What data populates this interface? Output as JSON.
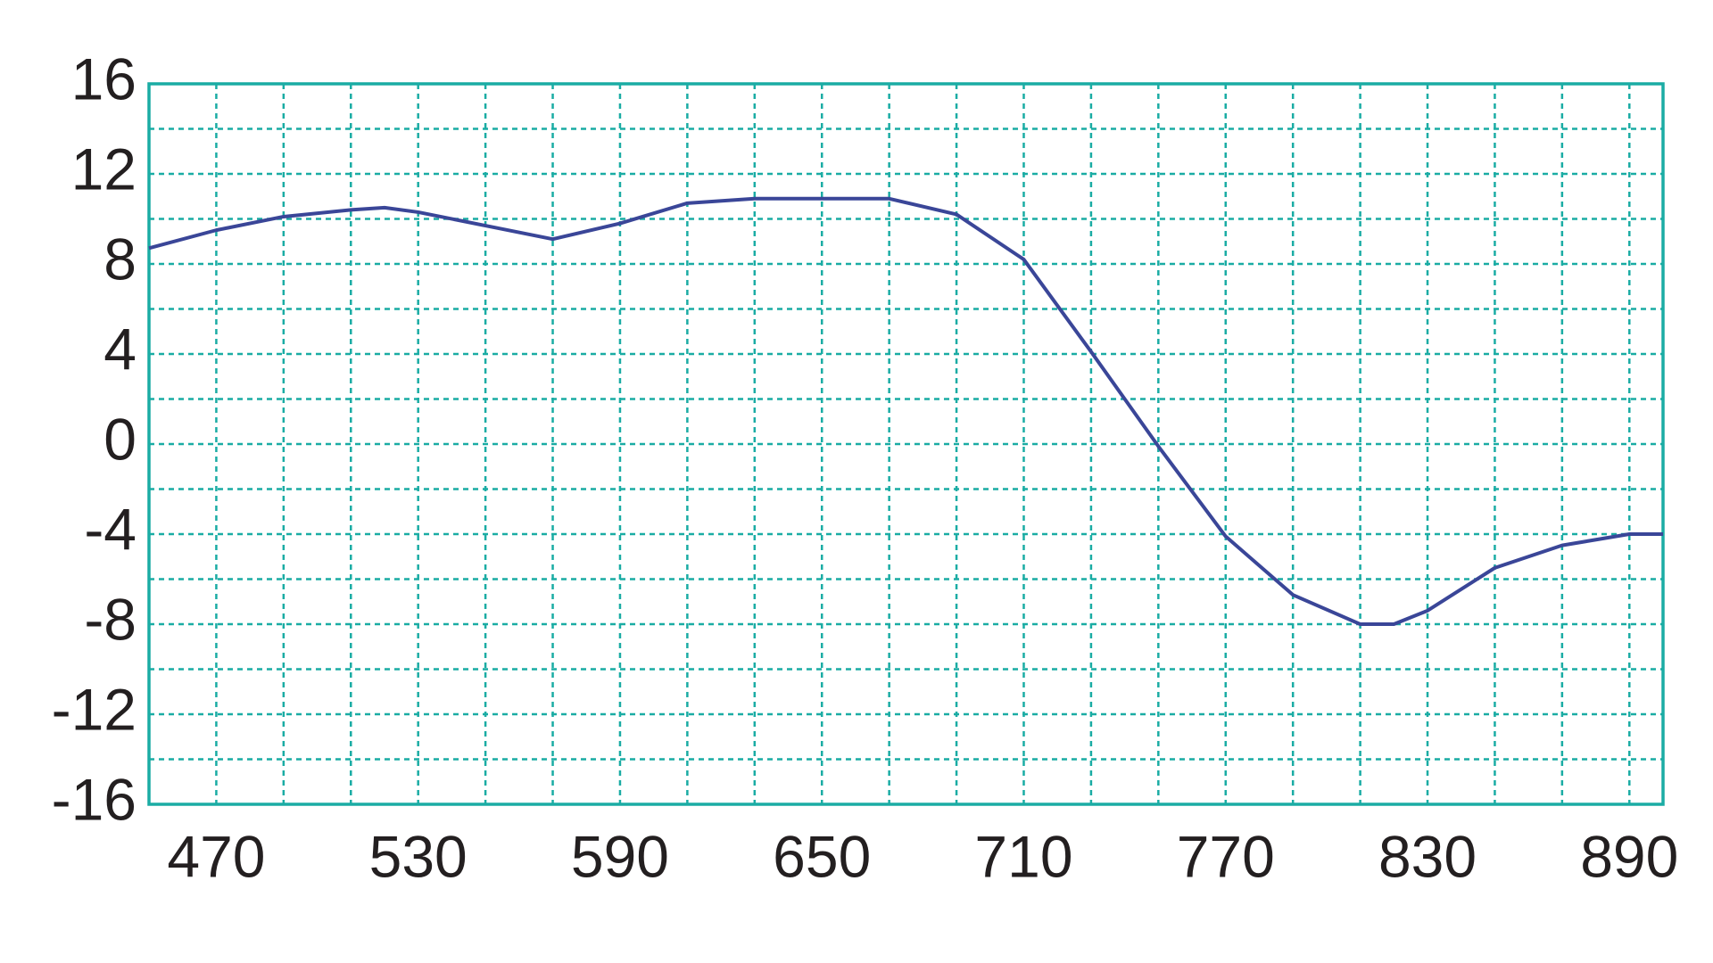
{
  "chart_data": {
    "type": "line",
    "x": [
      450,
      470,
      490,
      510,
      520,
      530,
      550,
      570,
      590,
      610,
      630,
      650,
      670,
      690,
      710,
      730,
      750,
      770,
      790,
      810,
      820,
      830,
      850,
      870,
      890,
      900
    ],
    "series": [
      {
        "color": "#3a4698",
        "values": [
          8.7,
          9.5,
          10.1,
          10.4,
          10.5,
          10.3,
          9.7,
          9.1,
          9.8,
          10.7,
          10.9,
          10.9,
          10.9,
          10.2,
          8.2,
          4.1,
          -0.1,
          -4.1,
          -6.7,
          -8.0,
          -8.0,
          -7.4,
          -5.5,
          -4.5,
          -4.0,
          -4.0
        ]
      }
    ],
    "xlim": [
      450,
      900
    ],
    "ylim": [
      -16,
      16
    ],
    "xticks": [
      470,
      530,
      590,
      650,
      710,
      770,
      830,
      890
    ],
    "yticks": [
      -16,
      -12,
      -8,
      -4,
      0,
      4,
      8,
      12,
      16
    ],
    "xgrid": [
      470,
      490,
      510,
      530,
      550,
      570,
      590,
      610,
      630,
      650,
      670,
      690,
      710,
      730,
      750,
      770,
      790,
      810,
      830,
      850,
      870,
      890
    ],
    "ygrid": [
      -14,
      -12,
      -10,
      -8,
      -6,
      -4,
      -2,
      0,
      2,
      4,
      6,
      8,
      10,
      12,
      14
    ],
    "grid": true,
    "grid_color": "#1aaca4"
  }
}
